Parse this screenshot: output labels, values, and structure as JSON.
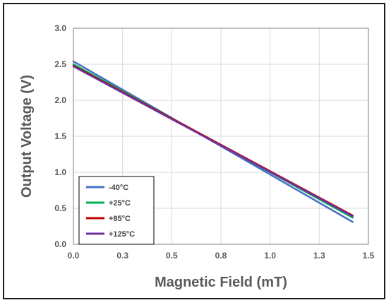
{
  "chart_data": {
    "type": "line",
    "xlabel": "Magnetic Field (mT)",
    "ylabel": "Output Voltage (V)",
    "xlim": [
      0,
      1.5
    ],
    "ylim": [
      0,
      3.0
    ],
    "x_ticks": [
      "0.0",
      "0.3",
      "0.5",
      "0.8",
      "1.0",
      "1.3",
      "1.5"
    ],
    "y_ticks": [
      "0.0",
      "0.5",
      "1.0",
      "1.5",
      "2.0",
      "2.5",
      "3.0"
    ],
    "grid": true,
    "legend_position": "bottom-left",
    "series": [
      {
        "name": "-40°C",
        "color": "#4472c4",
        "x": [
          0,
          1.42
        ],
        "y": [
          2.54,
          0.31
        ]
      },
      {
        "name": "+25°C",
        "color": "#00b050",
        "x": [
          0,
          1.42
        ],
        "y": [
          2.5,
          0.37
        ]
      },
      {
        "name": "+85°C",
        "color": "#c00000",
        "x": [
          0,
          1.42
        ],
        "y": [
          2.48,
          0.4
        ]
      },
      {
        "name": "+125°C",
        "color": "#7030a0",
        "x": [
          0,
          1.42
        ],
        "y": [
          2.47,
          0.39
        ]
      }
    ]
  }
}
